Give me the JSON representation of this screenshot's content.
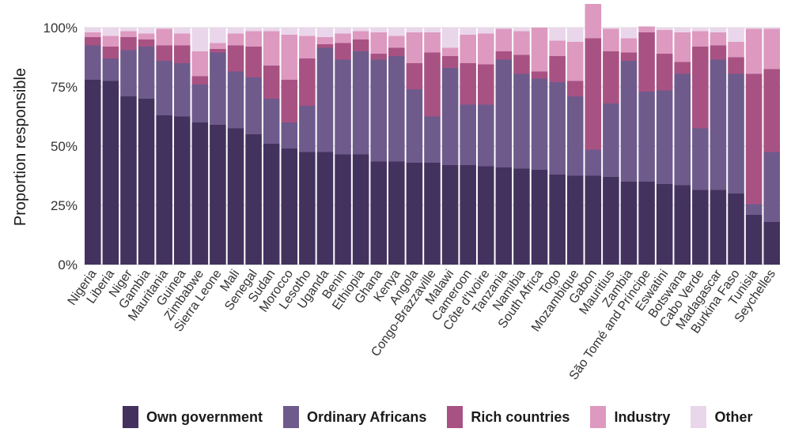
{
  "chart_data": {
    "type": "bar",
    "stacked": true,
    "title": "",
    "xlabel": "",
    "ylabel": "Proportion responsible",
    "ylim": [
      0,
      100
    ],
    "yticks": [
      "0%",
      "25%",
      "50%",
      "75%",
      "100%"
    ],
    "ytick_values": [
      0,
      25,
      50,
      75,
      100
    ],
    "categories": [
      "Nigeria",
      "Liberia",
      "Niger",
      "Gambia",
      "Mauritania",
      "Guinea",
      "Zimbabwe",
      "Sierra Leone",
      "Mali",
      "Senegal",
      "Sudan",
      "Morocco",
      "Lesotho",
      "Uganda",
      "Benin",
      "Ethiopia",
      "Ghana",
      "Kenya",
      "Angola",
      "Congo-Brazzaville",
      "Malawi",
      "Cameroon",
      "Côte d'Ivoire",
      "Tanzania",
      "Namibia",
      "South Africa",
      "Togo",
      "Mozambique",
      "Gabon",
      "Mauritius",
      "Zambia",
      "São Tomé and Príncipe",
      "Eswatini",
      "Botswana",
      "Cabo Verde",
      "Madagascar",
      "Burkina Faso",
      "Tunisia",
      "Seychelles"
    ],
    "series": [
      {
        "name": "Own government",
        "color": "#44325e",
        "values": [
          78,
          77.5,
          71,
          70,
          63,
          62.5,
          60,
          59,
          57.5,
          55,
          51,
          49,
          47.5,
          47.5,
          46.5,
          46.5,
          43.5,
          43.5,
          43,
          43,
          42,
          42,
          41.5,
          41,
          40.5,
          40,
          38,
          37.5,
          37.5,
          37,
          35,
          35,
          34,
          33.5,
          31.5,
          31.5,
          30,
          21,
          18
        ]
      },
      {
        "name": "Ordinary Africans",
        "color": "#6e5b8c",
        "values": [
          14.5,
          9.5,
          19.5,
          22,
          23,
          22.5,
          16,
          30.5,
          24,
          24,
          19,
          11,
          19.5,
          44,
          40,
          43.5,
          43,
          44.5,
          31,
          19.5,
          41,
          25.5,
          26,
          45.5,
          40,
          38.5,
          39,
          33.5,
          11,
          31,
          51,
          38,
          39.5,
          47,
          26,
          55,
          50.5,
          4.5,
          29.5
        ]
      },
      {
        "name": "Rich countries",
        "color": "#a85283",
        "values": [
          3.5,
          5,
          5.5,
          3,
          6.5,
          7.5,
          3.5,
          1.5,
          11,
          13,
          14,
          18,
          20,
          1.5,
          7,
          5,
          2.5,
          3.5,
          11,
          27,
          5,
          17.5,
          17,
          3.5,
          8,
          3,
          11,
          6.5,
          47,
          22,
          3.5,
          25,
          15.5,
          5,
          34.5,
          6,
          7,
          55,
          35
        ]
      },
      {
        "name": "Industry",
        "color": "#dd99c0",
        "values": [
          2,
          4.5,
          2.5,
          2.5,
          7,
          5,
          10.5,
          2.5,
          5,
          6.5,
          14.5,
          19,
          9.5,
          3,
          4,
          3.5,
          9,
          5,
          13,
          8.5,
          3.5,
          12,
          13,
          9.5,
          10,
          18.5,
          6.5,
          16.5,
          14.5,
          9.5,
          6,
          2.5,
          10,
          12.5,
          6.5,
          5.5,
          6.5,
          19,
          17
        ]
      },
      {
        "name": "Other",
        "color": "#ead6ea",
        "values": [
          2,
          3.5,
          1.5,
          2.5,
          0.5,
          2.5,
          10,
          6.5,
          2.5,
          1.5,
          1.5,
          3,
          3.5,
          4,
          2.5,
          1.5,
          2,
          3.5,
          2,
          2,
          8.5,
          3,
          2.5,
          0.5,
          1.5,
          0,
          5.5,
          6,
          0,
          0.5,
          4.5,
          0,
          1,
          2,
          1.5,
          2,
          6,
          0.5,
          0.5
        ]
      }
    ],
    "legend_position": "bottom",
    "grid": true
  }
}
